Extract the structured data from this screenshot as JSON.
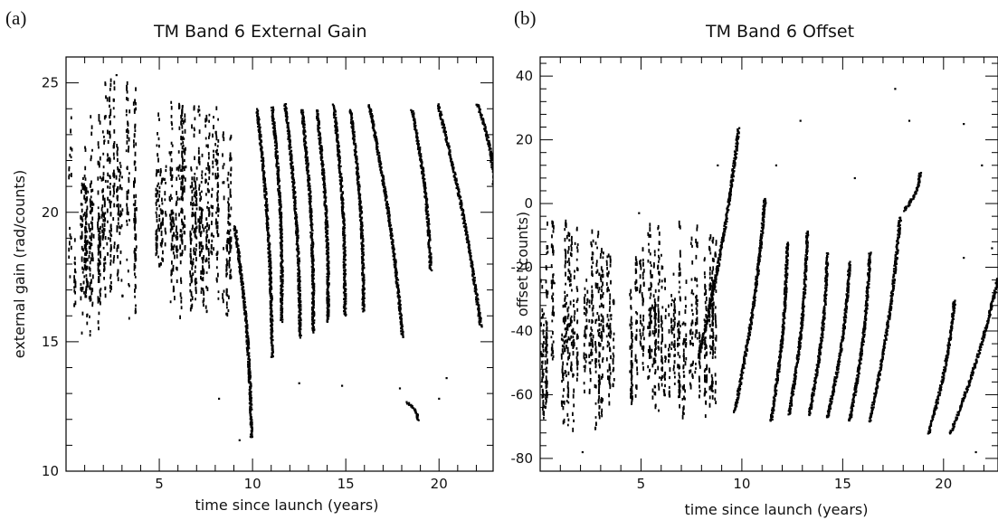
{
  "chart_data": [
    {
      "panel_label": "(a)",
      "type": "scatter",
      "title": "TM Band 6 External Gain",
      "xlabel": "time since launch (years)",
      "ylabel": "external gain (rad/counts)",
      "xlim": [
        0,
        22.9
      ],
      "ylim": [
        10,
        26
      ],
      "xticks": [
        5,
        10,
        15,
        20
      ],
      "yticks": [
        10,
        15,
        20,
        25
      ],
      "grid": false,
      "legend": "none",
      "marker_color": "#000000",
      "scatter_clusters": [
        {
          "x": [
            0.0,
            1.8
          ],
          "y": [
            15.0,
            24.0
          ]
        },
        {
          "x": [
            1.8,
            3.7
          ],
          "y": [
            15.7,
            25.2
          ]
        },
        {
          "x": [
            4.8,
            8.9
          ],
          "y": [
            15.8,
            24.3
          ]
        }
      ],
      "streaks": [
        {
          "x": [
            9.0,
            9.9
          ],
          "y": [
            19.5,
            11.3
          ]
        },
        {
          "x": [
            10.2,
            11.0
          ],
          "y": [
            24.0,
            14.4
          ]
        },
        {
          "x": [
            11.0,
            11.5
          ],
          "y": [
            24.1,
            15.8
          ]
        },
        {
          "x": [
            11.7,
            12.5
          ],
          "y": [
            24.2,
            15.2
          ]
        },
        {
          "x": [
            12.6,
            13.2
          ],
          "y": [
            24.0,
            15.4
          ]
        },
        {
          "x": [
            13.4,
            14.0
          ],
          "y": [
            24.0,
            15.8
          ]
        },
        {
          "x": [
            14.3,
            14.9
          ],
          "y": [
            24.2,
            16.0
          ]
        },
        {
          "x": [
            15.2,
            15.9
          ],
          "y": [
            24.0,
            16.2
          ]
        },
        {
          "x": [
            16.2,
            18.0
          ],
          "y": [
            24.2,
            15.2
          ]
        },
        {
          "x": [
            18.2,
            18.8
          ],
          "y": [
            12.7,
            12.0
          ]
        },
        {
          "x": [
            18.5,
            19.5
          ],
          "y": [
            24.0,
            17.8
          ]
        },
        {
          "x": [
            19.9,
            22.2
          ],
          "y": [
            24.2,
            15.6
          ]
        },
        {
          "x": [
            22.0,
            22.9
          ],
          "y": [
            24.2,
            21.0
          ]
        }
      ],
      "outliers": [
        {
          "x": 8.2,
          "y": 12.8
        },
        {
          "x": 9.3,
          "y": 11.2
        },
        {
          "x": 12.5,
          "y": 13.4
        },
        {
          "x": 14.8,
          "y": 13.3
        },
        {
          "x": 17.9,
          "y": 13.2
        },
        {
          "x": 20.0,
          "y": 12.8
        },
        {
          "x": 20.4,
          "y": 13.6
        },
        {
          "x": 2.7,
          "y": 25.3
        }
      ]
    },
    {
      "panel_label": "(b)",
      "type": "scatter",
      "title": "TM Band 6 Offset",
      "xlabel": "time since launch (years)",
      "ylabel": "offset (counts)",
      "xlim": [
        0,
        22.7
      ],
      "ylim": [
        -84,
        46
      ],
      "xticks": [
        5,
        10,
        15,
        20
      ],
      "yticks": [
        -80,
        -60,
        -40,
        -20,
        0,
        20,
        40
      ],
      "grid": false,
      "legend": "none",
      "marker_color": "#000000",
      "scatter_clusters": [
        {
          "x": [
            0.0,
            1.5
          ],
          "y": [
            -72,
            -5
          ]
        },
        {
          "x": [
            1.5,
            3.6
          ],
          "y": [
            -72,
            -7
          ]
        },
        {
          "x": [
            4.4,
            8.8
          ],
          "y": [
            -68,
            -5
          ]
        }
      ],
      "streaks": [
        {
          "x": [
            7.8,
            9.8
          ],
          "y": [
            -48,
            24
          ]
        },
        {
          "x": [
            9.6,
            11.1
          ],
          "y": [
            -65,
            2
          ]
        },
        {
          "x": [
            11.4,
            12.2
          ],
          "y": [
            -68,
            -12
          ]
        },
        {
          "x": [
            12.3,
            13.2
          ],
          "y": [
            -66,
            -8
          ]
        },
        {
          "x": [
            13.3,
            14.2
          ],
          "y": [
            -66,
            -15
          ]
        },
        {
          "x": [
            14.2,
            15.3
          ],
          "y": [
            -67,
            -18
          ]
        },
        {
          "x": [
            15.3,
            16.3
          ],
          "y": [
            -68,
            -15
          ]
        },
        {
          "x": [
            16.3,
            17.8
          ],
          "y": [
            -68,
            -4
          ]
        },
        {
          "x": [
            18.0,
            18.8
          ],
          "y": [
            -2,
            10
          ]
        },
        {
          "x": [
            19.2,
            20.5
          ],
          "y": [
            -72,
            -30
          ]
        },
        {
          "x": [
            20.3,
            22.7
          ],
          "y": [
            -72,
            -22
          ]
        }
      ],
      "outliers": [
        {
          "x": 0.7,
          "y": -25
        },
        {
          "x": 2.1,
          "y": -78
        },
        {
          "x": 4.9,
          "y": -3
        },
        {
          "x": 8.8,
          "y": 12
        },
        {
          "x": 11.7,
          "y": 12
        },
        {
          "x": 12.9,
          "y": 26
        },
        {
          "x": 15.6,
          "y": 8
        },
        {
          "x": 17.6,
          "y": 36
        },
        {
          "x": 18.3,
          "y": 26
        },
        {
          "x": 21.0,
          "y": 25
        },
        {
          "x": 21.9,
          "y": 12
        },
        {
          "x": 21.0,
          "y": -17
        },
        {
          "x": 22.4,
          "y": -14
        },
        {
          "x": 21.6,
          "y": -78
        }
      ]
    }
  ]
}
